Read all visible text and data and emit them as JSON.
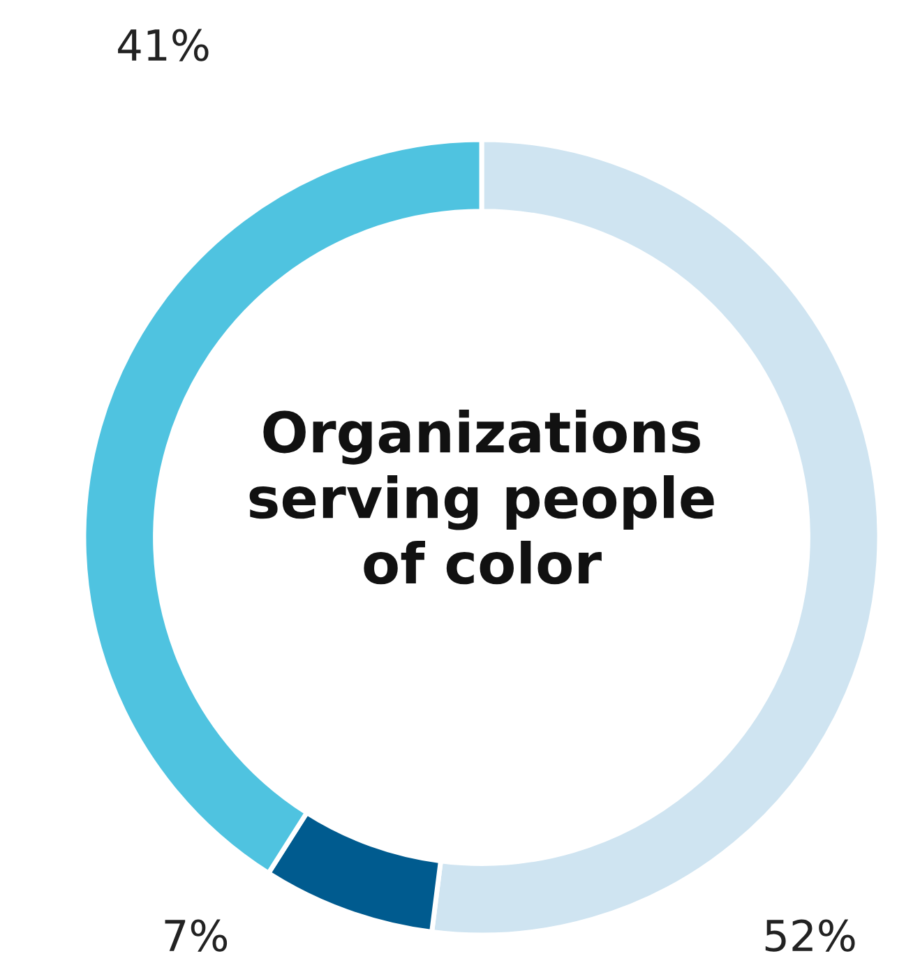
{
  "chart_data": {
    "type": "donut",
    "title": "Organizations\nserving people\nof color",
    "categories": [
      null,
      null,
      null
    ],
    "values": [
      52,
      7,
      41
    ],
    "colors": [
      "#cfe4f1",
      "#005b8f",
      "#4fc3e0"
    ],
    "value_labels": [
      "52%",
      "7%",
      "41%"
    ],
    "legend": false
  }
}
